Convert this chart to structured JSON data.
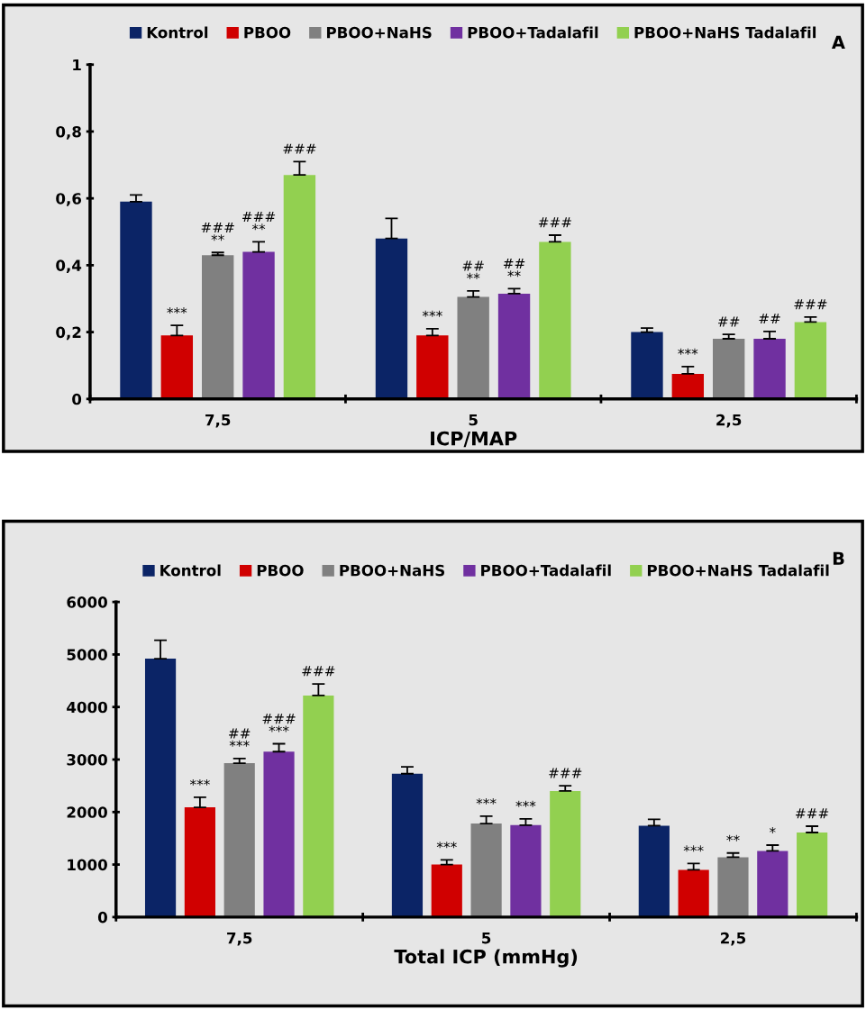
{
  "chart_data": [
    {
      "type": "bar",
      "xlabel": "ICP/MAP",
      "categories": [
        "7,5",
        "5",
        "2,5"
      ],
      "legend": "top",
      "grid": false,
      "annotations": [
        "A"
      ],
      "ylim": [
        0,
        1
      ],
      "yticks": [
        0,
        {
          "value": 0.2,
          "label": "0,2"
        },
        {
          "value": 0.4,
          "label": "0,4"
        },
        {
          "value": 0.6,
          "label": "0,6"
        },
        {
          "value": 0.8,
          "label": "0,8"
        },
        1
      ],
      "series": [
        {
          "name": "Kontrol",
          "color": "#0b2466",
          "values": [
            0.59,
            0.48,
            0.2
          ],
          "errors": [
            0.02,
            0.06,
            0.012
          ]
        },
        {
          "name": "PBOO",
          "color": "#d00000",
          "values": [
            0.19,
            0.19,
            0.075
          ],
          "errors": [
            0.03,
            0.02,
            0.022
          ],
          "value_labels": [
            "***",
            "***",
            "***"
          ]
        },
        {
          "name": "PBOO+NaHS",
          "color": "#808080",
          "values": [
            0.43,
            0.305,
            0.18
          ],
          "errors": [
            0.008,
            0.018,
            0.013
          ],
          "value_labels": [
            "###\n**",
            "##\n**",
            "##"
          ]
        },
        {
          "name": "PBOO+Tadalafil",
          "color": "#7030a0",
          "values": [
            0.44,
            0.315,
            0.18
          ],
          "errors": [
            0.03,
            0.015,
            0.022
          ],
          "value_labels": [
            "###\n**",
            "##\n**",
            "##"
          ]
        },
        {
          "name": "PBOO+NaHS Tadalafil",
          "color": "#92d050",
          "values": [
            0.67,
            0.47,
            0.23
          ],
          "errors": [
            0.04,
            0.02,
            0.015
          ],
          "value_labels": [
            "###",
            "###",
            "###"
          ]
        }
      ]
    },
    {
      "type": "bar",
      "xlabel": "Total ICP (mmHg)",
      "categories": [
        "7,5",
        "5",
        "2,5"
      ],
      "legend": "top",
      "grid": false,
      "annotations": [
        "B"
      ],
      "ylim": [
        0,
        6000
      ],
      "yticks": [
        0,
        1000,
        2000,
        3000,
        4000,
        5000,
        6000
      ],
      "series": [
        {
          "name": "Kontrol",
          "color": "#0b2466",
          "values": [
            4920,
            2730,
            1740
          ],
          "errors": [
            350,
            130,
            120
          ]
        },
        {
          "name": "PBOO",
          "color": "#d00000",
          "values": [
            2090,
            1000,
            900
          ],
          "errors": [
            190,
            90,
            120
          ],
          "value_labels": [
            "***",
            "***",
            "***"
          ]
        },
        {
          "name": "PBOO+NaHS",
          "color": "#808080",
          "values": [
            2930,
            1780,
            1140
          ],
          "errors": [
            90,
            140,
            80
          ],
          "value_labels": [
            "##\n***",
            "***",
            "**"
          ]
        },
        {
          "name": "PBOO+Tadalafil",
          "color": "#7030a0",
          "values": [
            3150,
            1750,
            1260
          ],
          "errors": [
            150,
            120,
            110
          ],
          "value_labels": [
            "###\n***",
            "***",
            "*"
          ]
        },
        {
          "name": "PBOO+NaHS Tadalafil",
          "color": "#92d050",
          "values": [
            4220,
            2400,
            1610
          ],
          "errors": [
            220,
            100,
            120
          ],
          "value_labels": [
            "###",
            "###",
            "###"
          ]
        }
      ]
    }
  ]
}
